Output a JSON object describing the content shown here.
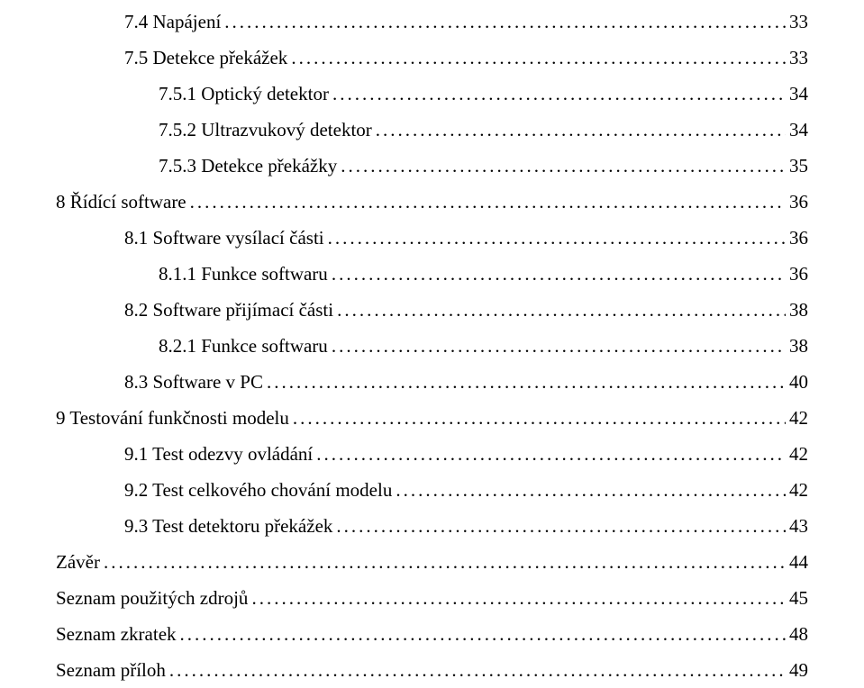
{
  "toc": {
    "font_family": "Times New Roman",
    "font_size_pt": 16,
    "line_height_pt": 30,
    "text_color": "#000000",
    "background_color": "#ffffff",
    "leader_char": ".",
    "entries": [
      {
        "label": "7.4 Napájení",
        "page": "33",
        "level": 2
      },
      {
        "label": "7.5 Detekce překážek",
        "page": "33",
        "level": 2
      },
      {
        "label": "7.5.1 Optický detektor",
        "page": "34",
        "level": 3
      },
      {
        "label": "7.5.2 Ultrazvukový detektor",
        "page": "34",
        "level": 3
      },
      {
        "label": "7.5.3 Detekce překážky",
        "page": "35",
        "level": 3
      },
      {
        "label": "8 Řídící software",
        "page": "36",
        "level": 0
      },
      {
        "label": "8.1 Software vysílací části",
        "page": "36",
        "level": 2
      },
      {
        "label": "8.1.1 Funkce softwaru",
        "page": "36",
        "level": 3
      },
      {
        "label": "8.2 Software přijímací části",
        "page": "38",
        "level": 2
      },
      {
        "label": "8.2.1 Funkce softwaru",
        "page": "38",
        "level": 3
      },
      {
        "label": "8.3 Software v PC",
        "page": "40",
        "level": 2
      },
      {
        "label": "9 Testování funkčnosti modelu",
        "page": "42",
        "level": 0
      },
      {
        "label": "9.1 Test odezvy ovládání",
        "page": "42",
        "level": 2
      },
      {
        "label": "9.2 Test celkového chování modelu",
        "page": "42",
        "level": 2
      },
      {
        "label": "9.3 Test detektoru překážek",
        "page": "43",
        "level": 2
      },
      {
        "label": "Závěr",
        "page": "44",
        "level": 0
      },
      {
        "label": "Seznam použitých zdrojů",
        "page": "45",
        "level": 0
      },
      {
        "label": "Seznam zkratek",
        "page": "48",
        "level": 0
      },
      {
        "label": "Seznam příloh",
        "page": "49",
        "level": 0
      }
    ]
  }
}
